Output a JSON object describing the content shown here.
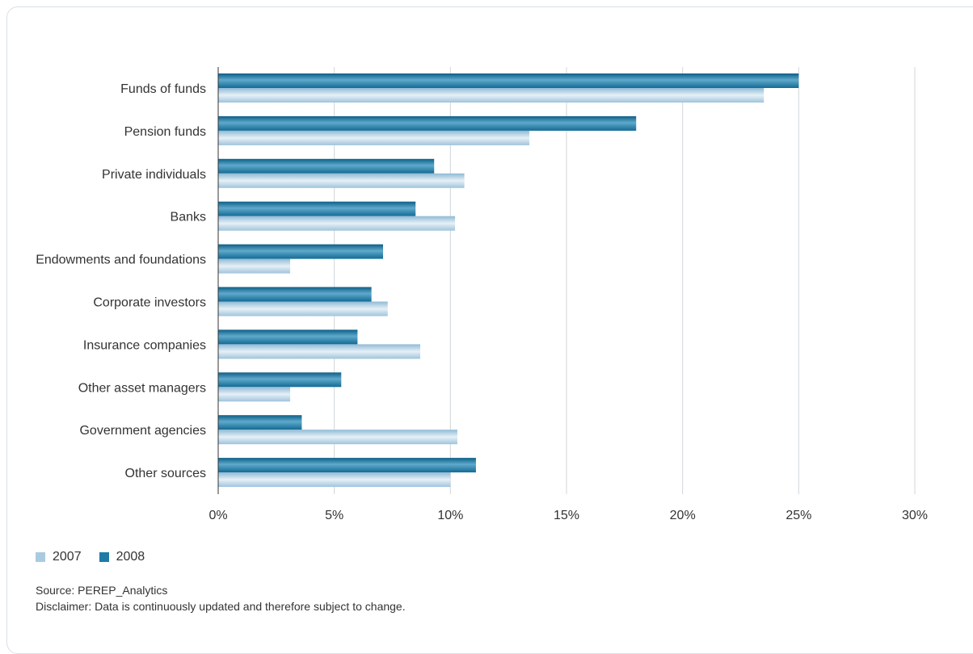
{
  "chart_data": {
    "type": "bar",
    "orientation": "horizontal",
    "categories": [
      "Funds of funds",
      "Pension funds",
      "Private individuals",
      "Banks",
      "Endowments and foundations",
      "Corporate investors",
      "Insurance companies",
      "Other asset managers",
      "Government agencies",
      "Other sources"
    ],
    "series": [
      {
        "name": "2008",
        "color": "#1f7ba6",
        "values": [
          25.0,
          18.0,
          9.3,
          8.5,
          7.1,
          6.6,
          6.0,
          5.3,
          3.6,
          11.1
        ]
      },
      {
        "name": "2007",
        "color": "#a9cbe0",
        "values": [
          23.5,
          13.4,
          10.6,
          10.2,
          3.1,
          7.3,
          8.7,
          3.1,
          10.3,
          10.0
        ]
      }
    ],
    "x_ticks": [
      "0%",
      "5%",
      "10%",
      "15%",
      "20%",
      "25%",
      "30%"
    ],
    "xlim": [
      0,
      30
    ],
    "unit": "%",
    "grid": true,
    "legend_position": "bottom-left"
  },
  "legend": [
    {
      "label": "2007",
      "color": "#a9cbe0"
    },
    {
      "label": "2008",
      "color": "#1f7ba6"
    }
  ],
  "notes": {
    "source": "Source: PEREP_Analytics",
    "disclaimer": "Disclaimer: Data is continuously updated and therefore subject to change."
  }
}
